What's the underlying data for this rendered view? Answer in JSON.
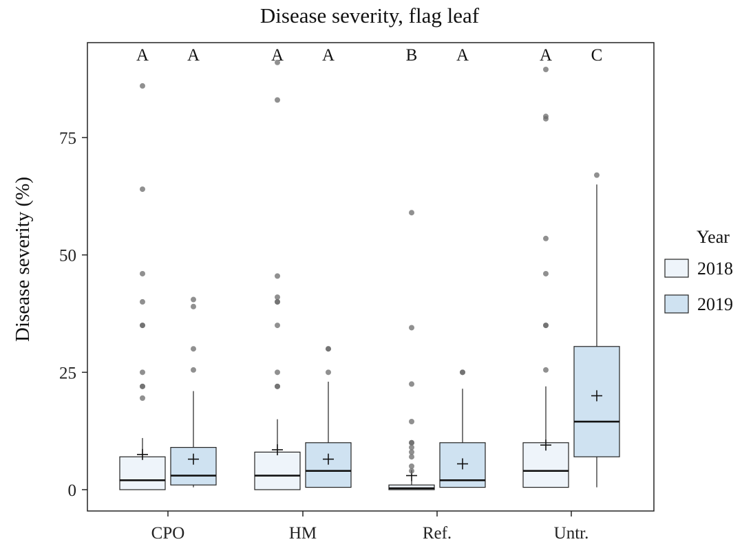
{
  "chart_data": {
    "type": "box",
    "title": "Disease severity, flag leaf",
    "xlabel": "",
    "ylabel": "Disease severity (%)",
    "ylim": [
      -4.5,
      97
    ],
    "yticks": [
      0,
      25,
      50,
      75
    ],
    "categories": [
      "CPO",
      "HM",
      "Ref.",
      "Untr."
    ],
    "legend": {
      "title": "Year",
      "position": "right"
    },
    "series": [
      {
        "name": "2018",
        "color": "#eef4fa",
        "groups": [
          {
            "category": "CPO",
            "letter": "A",
            "q1": 0,
            "median": 2,
            "q3": 7,
            "whisker_low": 0,
            "whisker_high": 11,
            "mean": 7.5,
            "outliers": [
              86,
              64,
              46,
              40,
              35,
              35,
              22,
              22,
              25,
              19.5
            ]
          },
          {
            "category": "HM",
            "letter": "A",
            "q1": 0,
            "median": 3,
            "q3": 8,
            "whisker_low": 0,
            "whisker_high": 15,
            "mean": 8.5,
            "outliers": [
              91,
              83,
              45.5,
              41,
              40,
              40,
              35,
              25,
              22,
              22
            ]
          },
          {
            "category": "Ref.",
            "letter": "B",
            "q1": 0,
            "median": 0.3,
            "q3": 1,
            "whisker_low": 0,
            "whisker_high": 2,
            "mean": 3,
            "outliers": [
              59,
              34.5,
              22.5,
              14.5,
              10,
              10,
              9,
              8,
              7,
              5,
              4
            ]
          },
          {
            "category": "Untr.",
            "letter": "A",
            "q1": 0.5,
            "median": 4,
            "q3": 10,
            "whisker_low": 0.5,
            "whisker_high": 22,
            "mean": 9.5,
            "outliers": [
              89.5,
              79.5,
              79,
              53.5,
              46,
              35,
              35,
              25.5
            ]
          }
        ]
      },
      {
        "name": "2019",
        "color": "#cfe2f1",
        "groups": [
          {
            "category": "CPO",
            "letter": "A",
            "q1": 1,
            "median": 3,
            "q3": 9,
            "whisker_low": 0.5,
            "whisker_high": 21,
            "mean": 6.5,
            "outliers": [
              40.5,
              39,
              30,
              25.5
            ]
          },
          {
            "category": "HM",
            "letter": "A",
            "q1": 0.5,
            "median": 4,
            "q3": 10,
            "whisker_low": 0.5,
            "whisker_high": 23,
            "mean": 6.5,
            "outliers": [
              30,
              30,
              25
            ]
          },
          {
            "category": "Ref.",
            "letter": "A",
            "q1": 0.5,
            "median": 2,
            "q3": 10,
            "whisker_low": 0.5,
            "whisker_high": 21.5,
            "mean": 5.5,
            "outliers": [
              25,
              25
            ]
          },
          {
            "category": "Untr.",
            "letter": "C",
            "q1": 7,
            "median": 14.5,
            "q3": 30.5,
            "whisker_low": 0.5,
            "whisker_high": 65,
            "mean": 20,
            "outliers": [
              67
            ]
          }
        ]
      }
    ]
  }
}
